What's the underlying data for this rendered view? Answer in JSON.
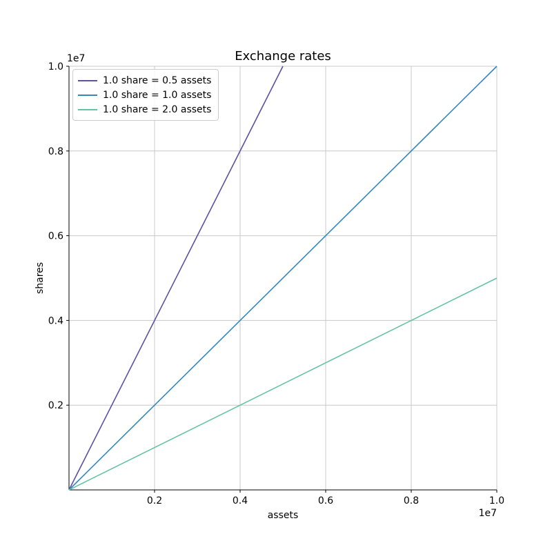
{
  "figure": {
    "background": "#ffffff"
  },
  "chart_data": {
    "type": "line",
    "title": "Exchange rates",
    "xlabel": "assets",
    "ylabel": "shares",
    "x_offset_text": "1e7",
    "y_offset_text": "1e7",
    "xlim": [
      0,
      10000000
    ],
    "ylim": [
      0,
      10000000
    ],
    "x_ticks": [
      2000000,
      4000000,
      6000000,
      8000000,
      10000000
    ],
    "x_tick_labels": [
      "0.2",
      "0.4",
      "0.6",
      "0.8",
      "1.0"
    ],
    "y_ticks": [
      2000000,
      4000000,
      6000000,
      8000000,
      10000000
    ],
    "y_tick_labels": [
      "0.2",
      "0.4",
      "0.6",
      "0.8",
      "1.0"
    ],
    "grid": true,
    "legend_position": "upper-left",
    "colors": {
      "grid": "#c8c8c8",
      "spine": "#000000",
      "text": "#000000",
      "legend_border": "#cccccc"
    },
    "series": [
      {
        "name": "1.0 share = 0.5 assets",
        "color": "#5e4fa2",
        "points": [
          [
            0,
            0
          ],
          [
            5000000,
            10000000
          ]
        ]
      },
      {
        "name": "1.0 share = 1.0 assets",
        "color": "#3288bd",
        "points": [
          [
            0,
            0
          ],
          [
            10000000,
            10000000
          ]
        ]
      },
      {
        "name": "1.0 share = 2.0 assets",
        "color": "#66c2a5",
        "points": [
          [
            0,
            0
          ],
          [
            10000000,
            5000000
          ]
        ]
      }
    ]
  }
}
